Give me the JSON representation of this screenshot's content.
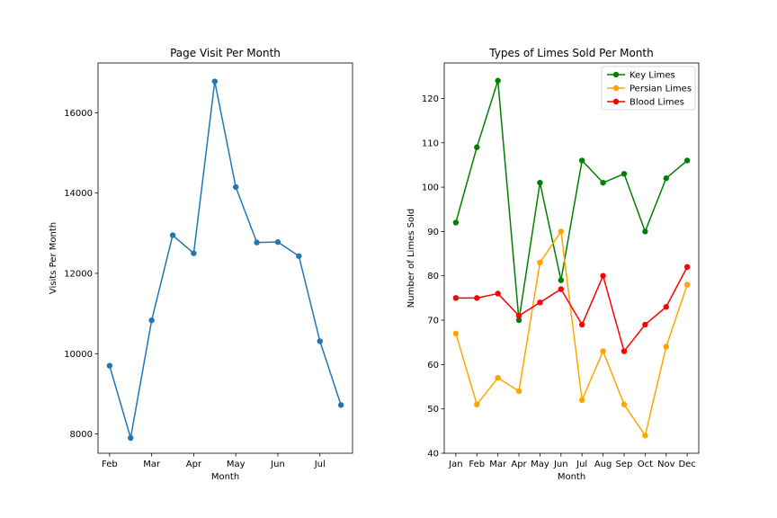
{
  "chart_data": [
    {
      "type": "line",
      "title": "Page Visit Per Month",
      "xlabel": "Month",
      "ylabel": "Visits Per Month",
      "x": [
        0,
        1,
        2,
        3,
        4,
        5,
        6,
        7,
        8,
        9,
        10,
        11
      ],
      "xtick_values": [
        0,
        2,
        4,
        6,
        8,
        10
      ],
      "xtick_labels": [
        "Feb",
        "Mar",
        "Apr",
        "May",
        "Jun",
        "Jul"
      ],
      "ytick_values": [
        8000,
        10000,
        12000,
        14000,
        16000
      ],
      "ytick_labels": [
        "8000",
        "10000",
        "12000",
        "14000",
        "16000"
      ],
      "xlim": [
        -0.55,
        11.55
      ],
      "ylim": [
        7520,
        17240
      ],
      "grid": false,
      "series": [
        {
          "color": "#1f77b4",
          "values": [
            9700,
            7900,
            10830,
            12950,
            12500,
            16780,
            14150,
            12770,
            12780,
            12430,
            10310,
            8720
          ]
        }
      ]
    },
    {
      "type": "line",
      "title": "Types of Limes Sold Per Month",
      "xlabel": "Month",
      "ylabel": "Number of Limes Sold",
      "categories": [
        "Jan",
        "Feb",
        "Mar",
        "Apr",
        "May",
        "Jun",
        "Jul",
        "Aug",
        "Sep",
        "Oct",
        "Nov",
        "Dec"
      ],
      "ytick_values": [
        40,
        50,
        60,
        70,
        80,
        90,
        100,
        110,
        120
      ],
      "ytick_labels": [
        "40",
        "50",
        "60",
        "70",
        "80",
        "90",
        "100",
        "110",
        "120"
      ],
      "xlim": [
        -0.55,
        11.55
      ],
      "ylim": [
        40,
        128
      ],
      "grid": false,
      "legend": "top-right",
      "series": [
        {
          "name": "Key Limes",
          "color": "#008000",
          "values": [
            92,
            109,
            124,
            70,
            101,
            79,
            106,
            101,
            103,
            90,
            102,
            106
          ]
        },
        {
          "name": "Persian Limes",
          "color": "#ffa500",
          "values": [
            67,
            51,
            57,
            54,
            83,
            90,
            52,
            63,
            51,
            44,
            64,
            78
          ]
        },
        {
          "name": "Blood Limes",
          "color": "#ff0000",
          "values": [
            75,
            75,
            76,
            71,
            74,
            77,
            69,
            80,
            63,
            69,
            73,
            82
          ]
        }
      ]
    }
  ]
}
